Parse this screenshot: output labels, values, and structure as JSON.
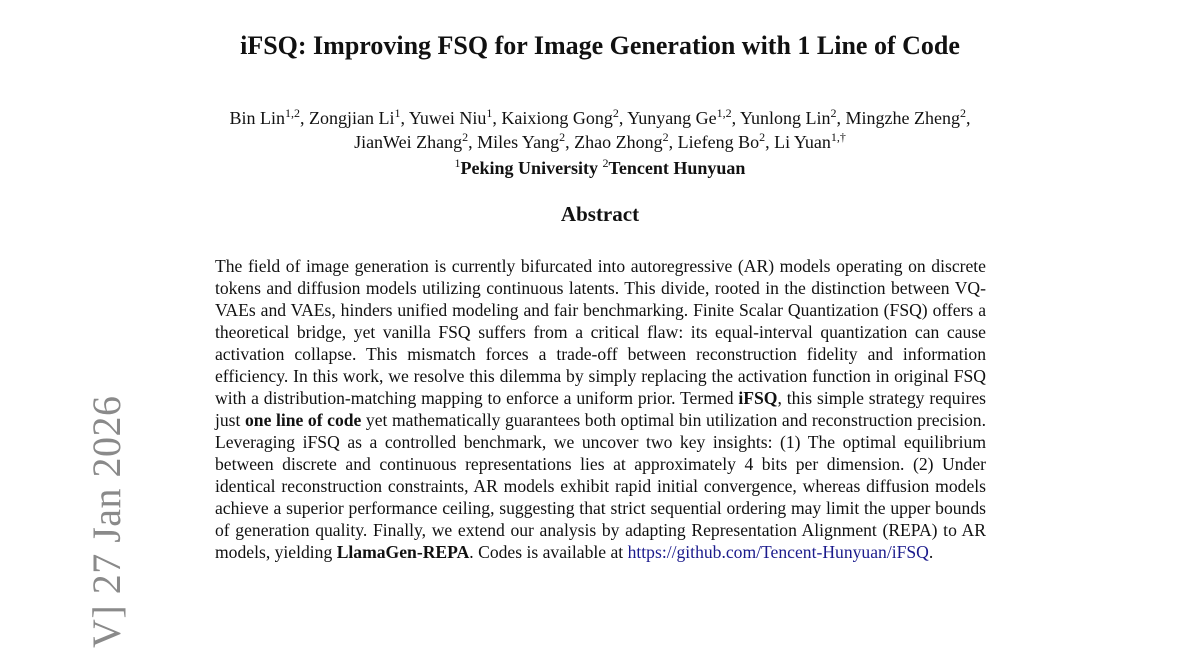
{
  "paper": {
    "title": "iFSQ: Improving FSQ for Image Generation with 1 Line of Code",
    "authors": [
      {
        "name": "Bin Lin",
        "sup": "1,2"
      },
      {
        "name": "Zongjian Li",
        "sup": "1"
      },
      {
        "name": "Yuwei Niu",
        "sup": "1"
      },
      {
        "name": "Kaixiong Gong",
        "sup": "2"
      },
      {
        "name": "Yunyang Ge",
        "sup": "1,2"
      },
      {
        "name": "Yunlong Lin",
        "sup": "2"
      },
      {
        "name": "Mingzhe Zheng",
        "sup": "2"
      },
      {
        "name": "JianWei Zhang",
        "sup": "2"
      },
      {
        "name": "Miles Yang",
        "sup": "2"
      },
      {
        "name": "Zhao Zhong",
        "sup": "2"
      },
      {
        "name": "Liefeng Bo",
        "sup": "2"
      },
      {
        "name": "Li Yuan",
        "sup": "1,†"
      }
    ],
    "affiliations": [
      {
        "sup": "1",
        "name": "Peking University"
      },
      {
        "sup": "2",
        "name": "Tencent Hunyuan"
      }
    ],
    "abstract_heading": "Abstract",
    "abstract": {
      "part1": "The field of image generation is currently bifurcated into autoregressive (AR) models operating on discrete tokens and diffusion models utilizing continuous latents. This divide, rooted in the distinction between VQ-VAEs and VAEs, hinders unified modeling and fair benchmarking. Finite Scalar Quantization (FSQ) offers a theoretical bridge, yet vanilla FSQ suffers from a critical flaw: its equal-interval quantization can cause activation collapse. This mismatch forces a trade-off between reconstruction fidelity and information efficiency. In this work, we resolve this dilemma by simply replacing the activation function in original FSQ with a distribution-matching mapping to enforce a uniform prior. Termed ",
      "bold1": "iFSQ",
      "part2": ", this simple strategy requires just ",
      "bold2": "one line of code",
      "part3": " yet mathematically guarantees both optimal bin utilization and reconstruction precision. Leveraging iFSQ as a controlled benchmark, we uncover two key insights: (1) The optimal equilibrium between discrete and continuous representations lies at approximately 4 bits per dimension. (2) Under identical reconstruction constraints, AR models exhibit rapid initial convergence, whereas diffusion models achieve a superior performance ceiling, suggesting that strict sequential ordering may limit the upper bounds of generation quality. Finally, we extend our analysis by adapting Representation Alignment (REPA) to AR models, yielding ",
      "bold3": "LlamaGen-REPA",
      "part4": ". Codes is available at ",
      "link": "https://github.com/Tencent-Hunyuan/iFSQ",
      "part5": "."
    },
    "side_stamp": "V]  27 Jan 2026"
  }
}
